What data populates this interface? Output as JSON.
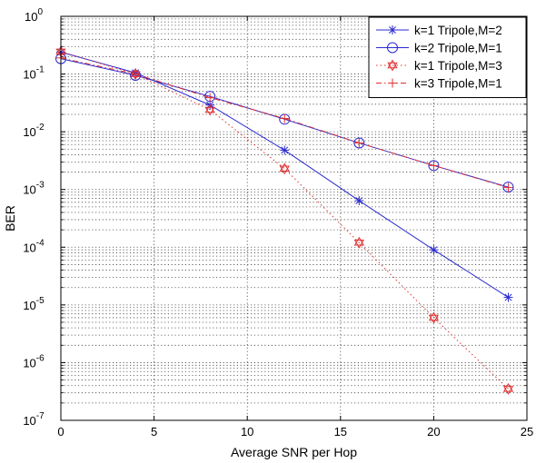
{
  "chart_data": {
    "type": "line",
    "xlabel": "Average SNR per Hop",
    "ylabel": "BER",
    "xlim": [
      0,
      25
    ],
    "ylim": [
      1e-07,
      1
    ],
    "yscale": "log",
    "grid": true,
    "legend_position": "top-right",
    "x_ticks": [
      "0",
      "5",
      "10",
      "15",
      "20",
      "25"
    ],
    "y_ticks": [
      {
        "base": "10",
        "exp": "-7"
      },
      {
        "base": "10",
        "exp": "-6"
      },
      {
        "base": "10",
        "exp": "-5"
      },
      {
        "base": "10",
        "exp": "-4"
      },
      {
        "base": "10",
        "exp": "-3"
      },
      {
        "base": "10",
        "exp": "-2"
      },
      {
        "base": "10",
        "exp": "-1"
      },
      {
        "base": "10",
        "exp": "0"
      }
    ],
    "series": [
      {
        "name": "k=1 Tripole,M=2",
        "color": "#2a2ad0",
        "line": "solid",
        "marker": "asterisk",
        "x": [
          0,
          4,
          8,
          12,
          16,
          20,
          24
        ],
        "y": [
          0.24,
          0.105,
          0.029,
          0.0048,
          0.00064,
          9e-05,
          1.35e-05
        ]
      },
      {
        "name": "k=2 Tripole,M=1",
        "color": "#2a2ad0",
        "line": "solid",
        "marker": "circle",
        "x": [
          0,
          4,
          8,
          12,
          16,
          20,
          24
        ],
        "y": [
          0.185,
          0.095,
          0.041,
          0.0165,
          0.0064,
          0.0026,
          0.0011
        ]
      },
      {
        "name": "k=1 Tripole,M=3",
        "color": "#e03030",
        "line": "dotted",
        "marker": "hexagram",
        "x": [
          0,
          4,
          8,
          12,
          16,
          20,
          24
        ],
        "y": [
          0.245,
          0.1,
          0.024,
          0.0023,
          0.00012,
          6e-06,
          3.5e-07
        ]
      },
      {
        "name": "k=3 Tripole,M=1",
        "color": "#e03030",
        "line": "dashdot",
        "marker": "plus",
        "x": [
          0,
          4,
          8,
          12,
          16,
          20,
          24
        ],
        "y": [
          0.19,
          0.1,
          0.039,
          0.017,
          0.0064,
          0.0026,
          0.00108
        ]
      }
    ]
  }
}
